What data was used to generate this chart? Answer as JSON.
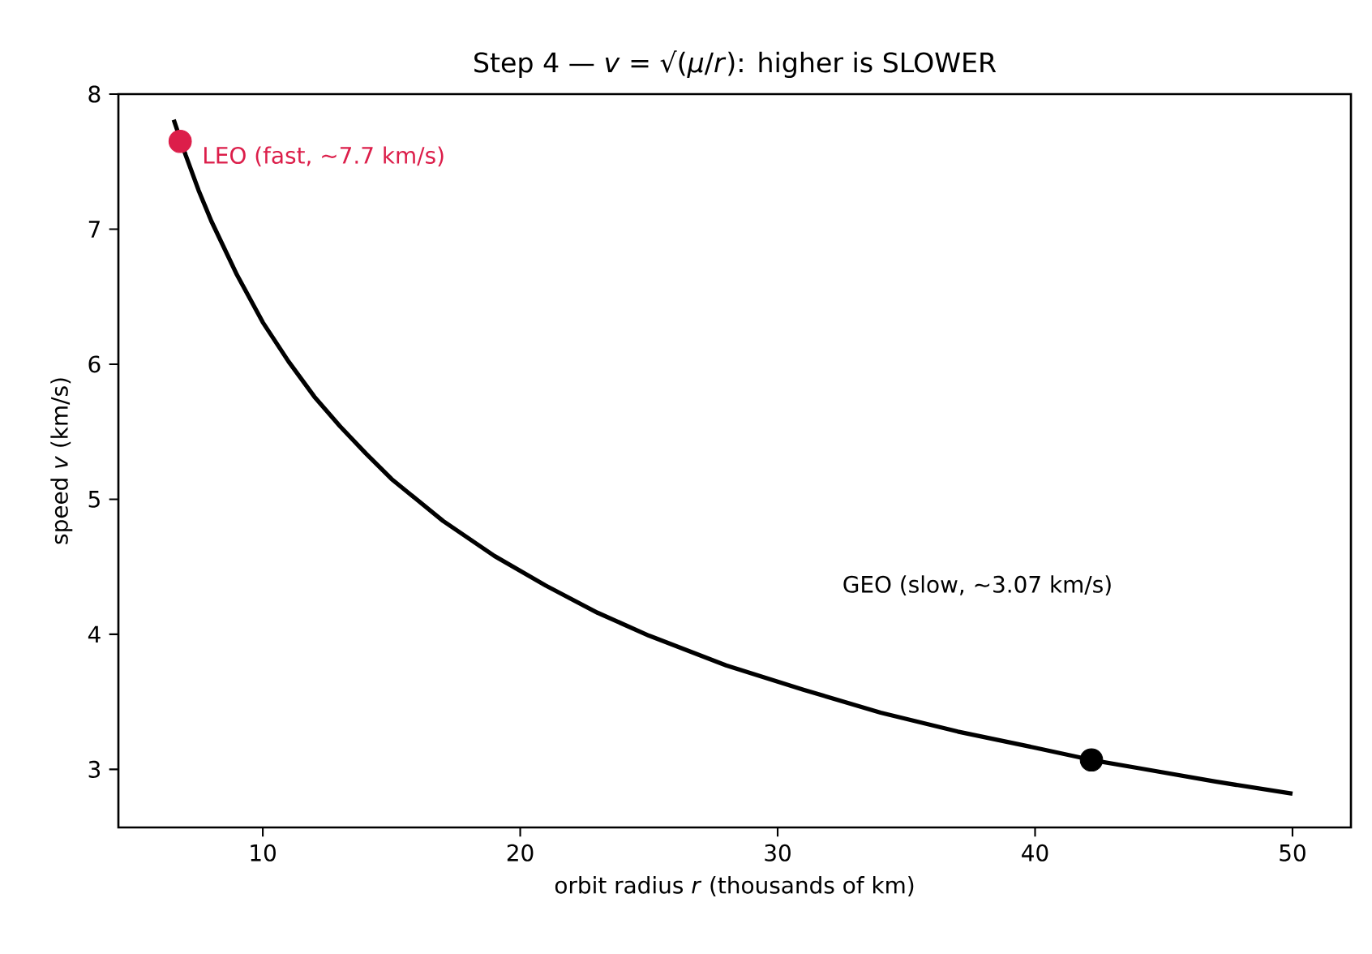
{
  "chart_data": {
    "type": "line",
    "title": "Step 4 — *v* = √(*μ*/*r*): higher is SLOWER",
    "xlabel": "orbit radius  *r*  (thousands of km)",
    "ylabel": "speed  *v*  (km/s)",
    "xlim": [
      4.39,
      52.27
    ],
    "ylim": [
      2.57,
      8
    ],
    "xticks": [
      10,
      20,
      30,
      40,
      50
    ],
    "yticks": [
      3,
      4,
      5,
      6,
      7,
      8
    ],
    "series": [
      {
        "color": "#000000",
        "marker": "none",
        "line_style": "solid",
        "x": [
          6.54,
          7,
          7.5,
          8,
          9,
          10,
          11,
          12,
          13,
          14,
          15,
          17,
          19,
          21,
          23,
          25,
          28,
          31,
          34,
          37,
          40,
          42.19,
          44,
          47,
          50
        ],
        "values": [
          7.81,
          7.55,
          7.29,
          7.06,
          6.66,
          6.31,
          6.02,
          5.76,
          5.54,
          5.34,
          5.15,
          4.84,
          4.58,
          4.36,
          4.16,
          3.99,
          3.77,
          3.59,
          3.42,
          3.28,
          3.16,
          3.07,
          3.01,
          2.91,
          2.82
        ]
      },
      {
        "type": "scatter",
        "color": "#dc1e4a",
        "marker": "circle",
        "x": [
          6.79
        ],
        "values": [
          7.65
        ]
      },
      {
        "type": "scatter",
        "color": "#000000",
        "marker": "circle",
        "x": [
          42.19
        ],
        "values": [
          3.07
        ]
      }
    ],
    "annotations": [
      {
        "text": "LEO (fast, ~7.7 km/s)",
        "x": 6.79,
        "y": 7.65
      },
      "GEO (slow, ~3.07 km/s)"
    ]
  }
}
